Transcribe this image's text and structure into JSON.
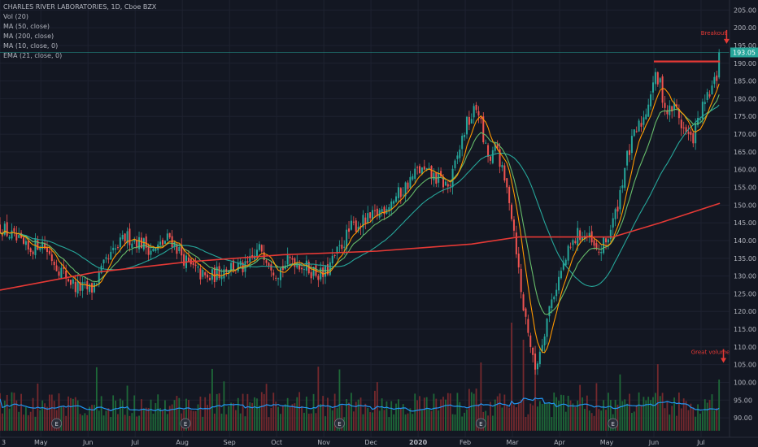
{
  "chart_data": {
    "type": "candlestick",
    "title": "CHARLES RIVER LABORATORIES, 1D, Cboe BZX",
    "indicators": [
      "Vol (20)",
      "MA (50, close)",
      "MA (200, close)",
      "MA (10, close, 0)",
      "EMA (21, close, 0)"
    ],
    "y_ticks": [
      90,
      95,
      100,
      105,
      110,
      115,
      120,
      125,
      130,
      135,
      140,
      145,
      150,
      155,
      160,
      165,
      170,
      175,
      180,
      185,
      190,
      195,
      200,
      205
    ],
    "y_tick_labels": [
      "90.00",
      "95.00",
      "100.00",
      "105.00",
      "110.00",
      "115.00",
      "120.00",
      "125.00",
      "130.00",
      "135.00",
      "140.00",
      "145.00",
      "150.00",
      "155.00",
      "160.00",
      "165.00",
      "170.00",
      "175.00",
      "180.00",
      "185.00",
      "190.00",
      "195.00",
      "200.00",
      "205.00"
    ],
    "ylim": [
      87.5,
      206
    ],
    "x_labels": [
      "3",
      "May",
      "Jun",
      "Jul",
      "Aug",
      "Sep",
      "Oct",
      "Nov",
      "Dec",
      "2020",
      "Feb",
      "Mar",
      "Apr",
      "May",
      "Jun",
      "Jul"
    ],
    "x_label_days": [
      0,
      26,
      56,
      86,
      116,
      146,
      176,
      206,
      236,
      266,
      296,
      326,
      356,
      386,
      416,
      446
    ],
    "last_price": 193.05,
    "last_price_label": "193.05",
    "breakout_level": 190.5,
    "anchors": [
      {
        "day": 0,
        "price": 144
      },
      {
        "day": 8,
        "price": 141
      },
      {
        "day": 18,
        "price": 137
      },
      {
        "day": 26,
        "price": 140
      },
      {
        "day": 36,
        "price": 133
      },
      {
        "day": 48,
        "price": 127
      },
      {
        "day": 58,
        "price": 126
      },
      {
        "day": 68,
        "price": 134
      },
      {
        "day": 80,
        "price": 141
      },
      {
        "day": 88,
        "price": 140
      },
      {
        "day": 98,
        "price": 137
      },
      {
        "day": 108,
        "price": 141
      },
      {
        "day": 120,
        "price": 133
      },
      {
        "day": 132,
        "price": 129
      },
      {
        "day": 146,
        "price": 133
      },
      {
        "day": 156,
        "price": 132
      },
      {
        "day": 166,
        "price": 138
      },
      {
        "day": 176,
        "price": 131
      },
      {
        "day": 186,
        "price": 135
      },
      {
        "day": 196,
        "price": 132
      },
      {
        "day": 206,
        "price": 130
      },
      {
        "day": 214,
        "price": 136
      },
      {
        "day": 224,
        "price": 144
      },
      {
        "day": 236,
        "price": 146
      },
      {
        "day": 246,
        "price": 150
      },
      {
        "day": 256,
        "price": 154
      },
      {
        "day": 266,
        "price": 160
      },
      {
        "day": 276,
        "price": 158
      },
      {
        "day": 286,
        "price": 155
      },
      {
        "day": 296,
        "price": 172
      },
      {
        "day": 304,
        "price": 178
      },
      {
        "day": 308,
        "price": 167
      },
      {
        "day": 312,
        "price": 162
      },
      {
        "day": 316,
        "price": 167
      },
      {
        "day": 320,
        "price": 158
      },
      {
        "day": 324,
        "price": 152
      },
      {
        "day": 328,
        "price": 140
      },
      {
        "day": 332,
        "price": 123
      },
      {
        "day": 336,
        "price": 115
      },
      {
        "day": 340,
        "price": 103
      },
      {
        "day": 344,
        "price": 110
      },
      {
        "day": 350,
        "price": 122
      },
      {
        "day": 356,
        "price": 130
      },
      {
        "day": 362,
        "price": 137
      },
      {
        "day": 368,
        "price": 142
      },
      {
        "day": 374,
        "price": 141
      },
      {
        "day": 380,
        "price": 136
      },
      {
        "day": 386,
        "price": 140
      },
      {
        "day": 392,
        "price": 148
      },
      {
        "day": 398,
        "price": 162
      },
      {
        "day": 404,
        "price": 170
      },
      {
        "day": 410,
        "price": 175
      },
      {
        "day": 416,
        "price": 186
      },
      {
        "day": 420,
        "price": 184
      },
      {
        "day": 424,
        "price": 176
      },
      {
        "day": 430,
        "price": 178
      },
      {
        "day": 434,
        "price": 172
      },
      {
        "day": 440,
        "price": 168
      },
      {
        "day": 446,
        "price": 176
      },
      {
        "day": 452,
        "price": 182
      },
      {
        "day": 456,
        "price": 186
      },
      {
        "day": 458,
        "price": 193
      }
    ],
    "ma200": [
      {
        "day": 0,
        "price": 126
      },
      {
        "day": 60,
        "price": 131
      },
      {
        "day": 120,
        "price": 134
      },
      {
        "day": 180,
        "price": 136
      },
      {
        "day": 240,
        "price": 137
      },
      {
        "day": 300,
        "price": 139
      },
      {
        "day": 330,
        "price": 141
      },
      {
        "day": 360,
        "price": 141
      },
      {
        "day": 390,
        "price": 141
      },
      {
        "day": 420,
        "price": 145
      },
      {
        "day": 458,
        "price": 150.5
      }
    ],
    "earnings_days": [
      36,
      118,
      216,
      306,
      390
    ],
    "earnings_label": "E",
    "volume_spikes": [
      {
        "day": 306,
        "height": 0.6
      },
      {
        "day": 326,
        "height": 0.95
      },
      {
        "day": 333,
        "height": 0.8
      },
      {
        "day": 340,
        "height": 0.55
      },
      {
        "day": 458,
        "height": 0.45
      }
    ],
    "annotations": [
      {
        "text": "Breakout",
        "day": 454,
        "price": 198
      },
      {
        "text": "Great volume",
        "day": 452,
        "price": 108
      }
    ]
  },
  "colors": {
    "background": "#131722",
    "up": "#26a69a",
    "down": "#ef5350",
    "ma200": "#e53935",
    "ma50": "#26a69a",
    "ma10": "#ff9800",
    "ema21": "#66bb6a",
    "volume_ma": "#2196f3",
    "annotation": "#e53935",
    "grid": "#1e2230"
  }
}
